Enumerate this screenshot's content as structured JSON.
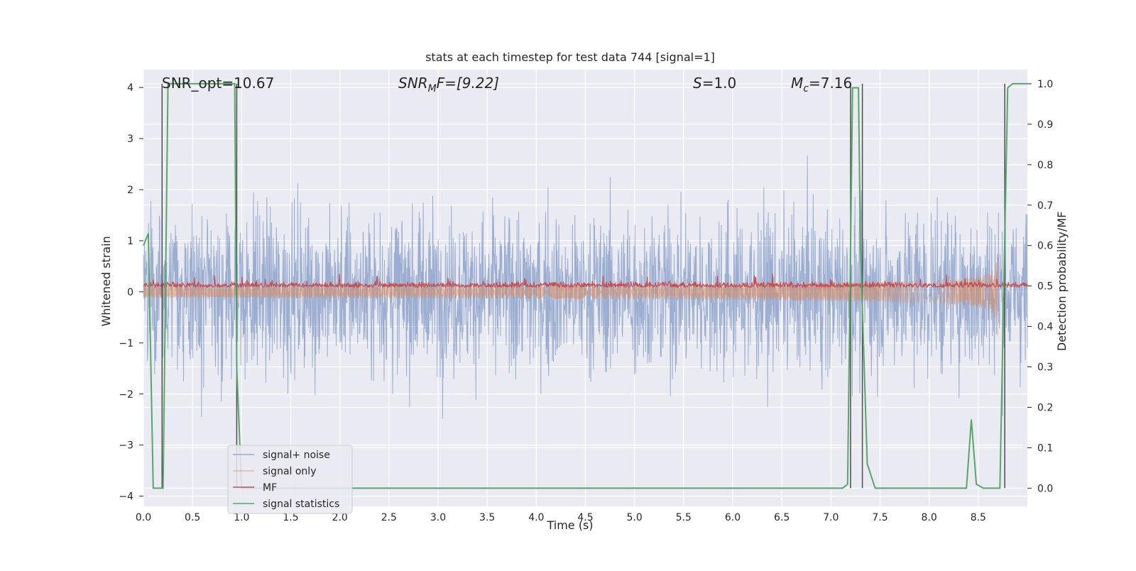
{
  "chart_data": {
    "type": "line",
    "title": "stats at each timestep for test data 744 [signal=1]",
    "xlabel": "Time (s)",
    "ylabel": "Whitened strain",
    "ylabel_right": "Detection probability/MF",
    "xlim": [
      0.0,
      9.0
    ],
    "ylim": [
      -4.2,
      4.35
    ],
    "ylim_right": [
      -0.045,
      1.035
    ],
    "x_ticks": [
      0.0,
      0.5,
      1.0,
      1.5,
      2.0,
      2.5,
      3.0,
      3.5,
      4.0,
      4.5,
      5.0,
      5.5,
      6.0,
      6.5,
      7.0,
      7.5,
      8.0,
      8.5
    ],
    "y_ticks": [
      -4,
      -3,
      -2,
      -1,
      0,
      1,
      2,
      3,
      4
    ],
    "y_ticks_right": [
      0.0,
      0.1,
      0.2,
      0.3,
      0.4,
      0.5,
      0.6,
      0.7,
      0.8,
      0.9,
      1.0
    ],
    "grid": true,
    "legend_position": "lower-left",
    "annotations": {
      "snr_opt": "SNR_opt=10.67",
      "snr_mf_main": "SNR",
      "snr_mf_sub": "M",
      "snr_mf_rest": "F=[9.22]",
      "s_main": "S",
      "s_rest": "=1.0",
      "mc_main": "M",
      "mc_sub": "c",
      "mc_rest": "=7.16"
    },
    "series": [
      {
        "name": "signal+ noise",
        "color": "#4c72b0",
        "axis": "left",
        "kind": "noise",
        "amplitude": 1.0
      },
      {
        "name": "signal only",
        "color": "#dd8452",
        "axis": "left",
        "kind": "chirp",
        "t_merge": 8.7,
        "peak_amplitude": 1.0
      },
      {
        "name": "MF",
        "color": "#c44e52",
        "axis": "left",
        "kind": "filter-output",
        "level": 0.12
      },
      {
        "name": "signal statistics",
        "color": "#55a868",
        "axis": "right",
        "x": [
          0.0,
          0.05,
          0.1,
          0.12,
          0.2,
          0.25,
          0.3,
          0.93,
          0.95,
          1.0,
          1.05,
          7.12,
          7.17,
          7.22,
          7.24,
          7.28,
          7.3,
          7.37,
          7.45,
          8.38,
          8.43,
          8.48,
          8.55,
          8.72,
          8.8,
          8.85,
          8.9,
          9.0
        ],
        "y": [
          0.6,
          0.63,
          0.0,
          0.0,
          0.0,
          1.0,
          1.0,
          1.0,
          0.3,
          0.0,
          0.0,
          0.0,
          0.01,
          0.99,
          0.99,
          0.99,
          0.6,
          0.06,
          0.0,
          0.0,
          0.17,
          0.01,
          0.0,
          0.0,
          0.99,
          1.0,
          1.0,
          1.0
        ]
      }
    ],
    "vertical_markers": [
      0.19,
      0.95,
      7.2,
      7.32,
      8.77
    ]
  },
  "legend": {
    "items": [
      {
        "label": "signal+ noise",
        "color": "#4c72b0"
      },
      {
        "label": "signal only",
        "color": "#dd8452"
      },
      {
        "label": "MF",
        "color": "#c44e52"
      },
      {
        "label": "signal statistics",
        "color": "#55a868"
      }
    ]
  },
  "colors": {
    "plot_background": "#eaeaf2",
    "grid": "#ffffff",
    "text": "#262626",
    "marker": "#4d4d4d"
  }
}
